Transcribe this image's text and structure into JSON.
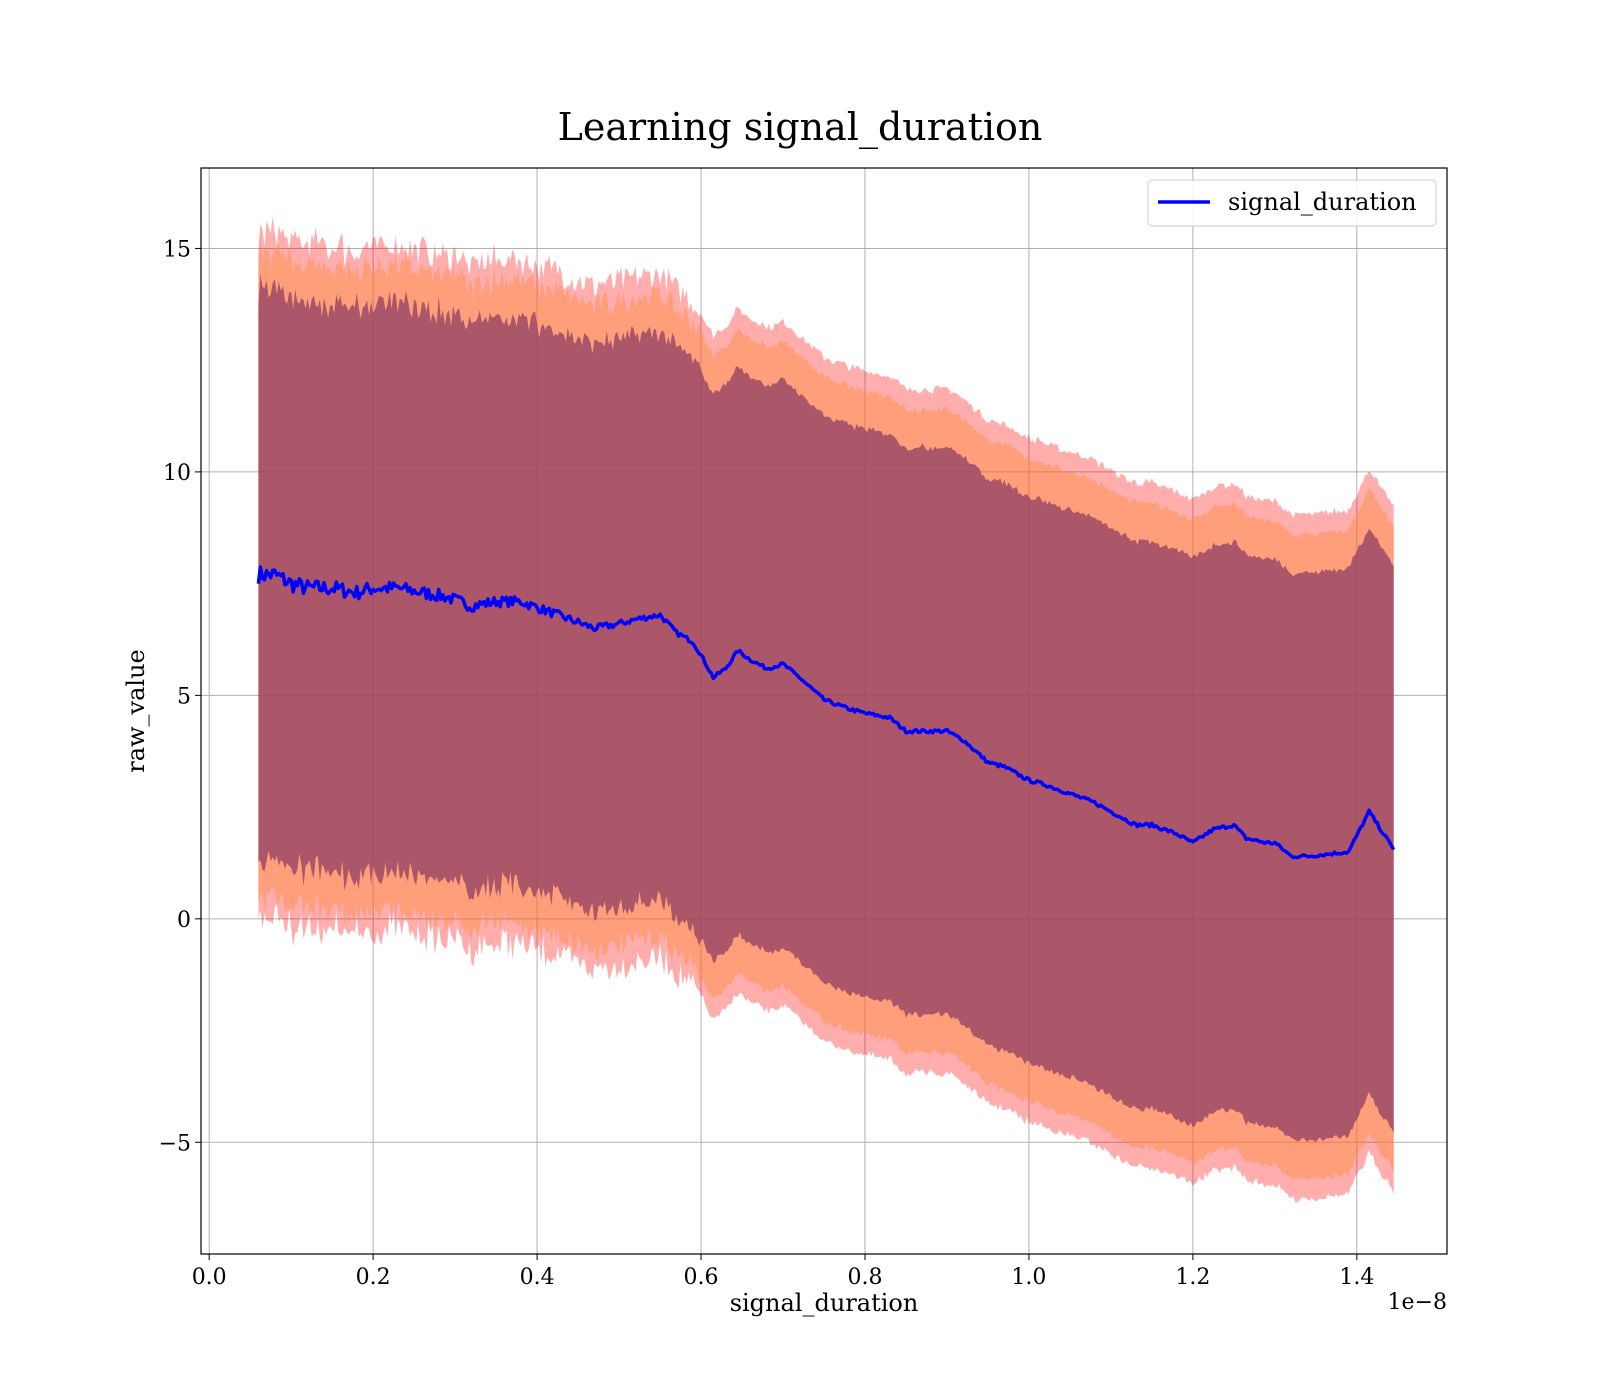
{
  "chart_data": {
    "type": "line",
    "title": "Learning signal_duration",
    "xlabel": "signal_duration",
    "ylabel": "raw_value",
    "x_offset_label": "1e−8",
    "xlim": [
      -0.01,
      1.51
    ],
    "ylim": [
      -7.5,
      16.8
    ],
    "x_ticks": [
      0.0,
      0.2,
      0.4,
      0.6,
      0.8,
      1.0,
      1.2,
      1.4
    ],
    "x_tick_labels": [
      "0.0",
      "0.2",
      "0.4",
      "0.6",
      "0.8",
      "1.0",
      "1.2",
      "1.4"
    ],
    "y_ticks": [
      -5,
      0,
      5,
      10,
      15
    ],
    "y_tick_labels": [
      "−5",
      "0",
      "5",
      "10",
      "15"
    ],
    "grid": true,
    "legend_position": "top-right",
    "colors": {
      "mean_line": "#0000ff",
      "band_outer": "#ff0000",
      "band_middle": "#ff8c3c",
      "band_inner": "#8b3a62"
    },
    "series": [
      {
        "name": "signal_duration",
        "x": [
          0.06,
          0.08,
          0.1,
          0.12,
          0.15,
          0.18,
          0.2,
          0.23,
          0.26,
          0.29,
          0.32,
          0.35,
          0.38,
          0.41,
          0.44,
          0.47,
          0.5,
          0.52,
          0.55,
          0.57,
          0.59,
          0.6,
          0.615,
          0.63,
          0.645,
          0.66,
          0.68,
          0.7,
          0.72,
          0.75,
          0.78,
          0.8,
          0.83,
          0.85,
          0.88,
          0.9,
          0.92,
          0.95,
          0.97,
          1.0,
          1.02,
          1.05,
          1.08,
          1.1,
          1.13,
          1.15,
          1.18,
          1.2,
          1.225,
          1.25,
          1.265,
          1.29,
          1.3,
          1.32,
          1.34,
          1.39,
          1.415,
          1.445
        ],
        "y": [
          7.7,
          7.7,
          7.5,
          7.4,
          7.4,
          7.3,
          7.4,
          7.4,
          7.3,
          7.2,
          7.0,
          7.1,
          7.1,
          6.9,
          6.7,
          6.5,
          6.6,
          6.7,
          6.8,
          6.4,
          6.2,
          5.9,
          5.4,
          5.6,
          6.0,
          5.8,
          5.6,
          5.7,
          5.4,
          4.9,
          4.7,
          4.6,
          4.5,
          4.2,
          4.2,
          4.2,
          4.0,
          3.5,
          3.4,
          3.1,
          3.0,
          2.8,
          2.6,
          2.4,
          2.1,
          2.1,
          1.9,
          1.7,
          2.0,
          2.1,
          1.8,
          1.7,
          1.7,
          1.4,
          1.4,
          1.5,
          2.4,
          1.55
        ]
      }
    ],
    "bands": {
      "inner_sigma": 6.35,
      "middle_sigma": 7.2,
      "outer_sigma": 7.65
    }
  }
}
